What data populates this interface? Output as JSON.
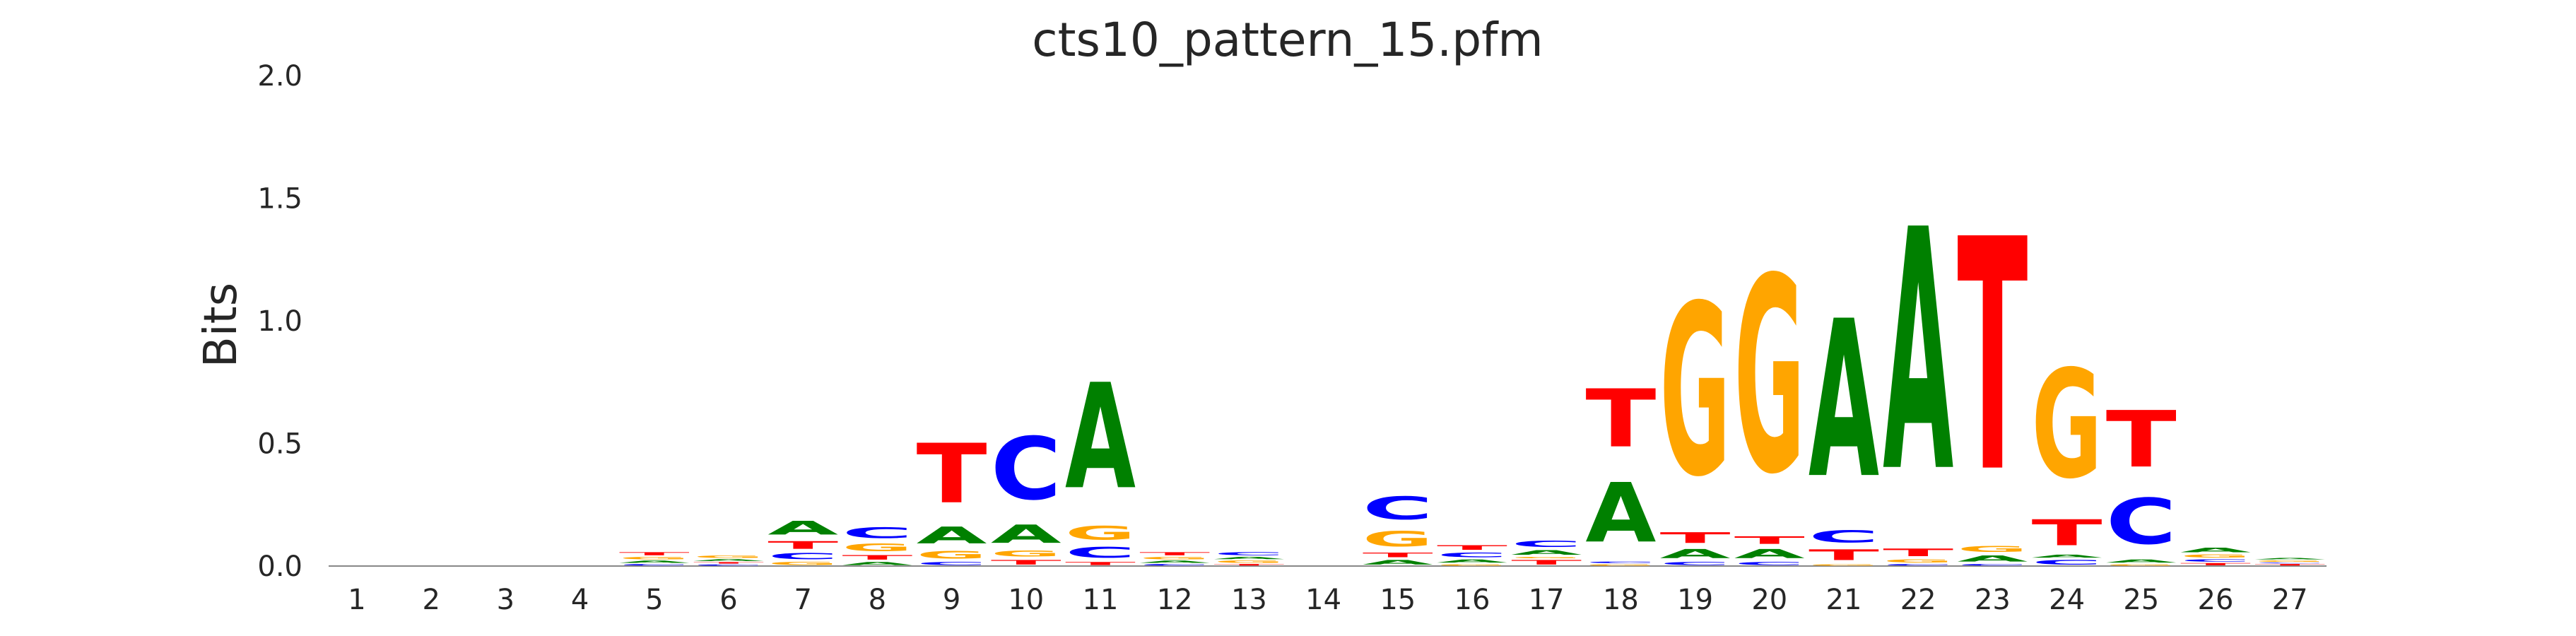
{
  "chart_data": {
    "type": "sequence-logo",
    "title": "cts10_pattern_15.pfm",
    "xlabel": "",
    "ylabel": "Bits",
    "ylim": [
      0,
      2
    ],
    "yticks": [
      "0.0",
      "0.5",
      "1.0",
      "1.5",
      "2.0"
    ],
    "positions": [
      "1",
      "2",
      "3",
      "4",
      "5",
      "6",
      "7",
      "8",
      "9",
      "10",
      "11",
      "12",
      "13",
      "14",
      "15",
      "16",
      "17",
      "18",
      "19",
      "20",
      "21",
      "22",
      "23",
      "24",
      "25",
      "26",
      "27"
    ],
    "colors": {
      "A": "#008000",
      "C": "#0000ff",
      "G": "#ffa500",
      "T": "#ff0000"
    },
    "grid": false,
    "legend": "none",
    "stacks": [
      [],
      [],
      [],
      [],
      [
        [
          "C",
          0.01
        ],
        [
          "A",
          0.015
        ],
        [
          "G",
          0.015
        ],
        [
          "T",
          0.02
        ]
      ],
      [
        [
          "C",
          0.008
        ],
        [
          "T",
          0.01
        ],
        [
          "A",
          0.012
        ],
        [
          "G",
          0.015
        ]
      ],
      [
        [
          "G",
          0.02
        ],
        [
          "C",
          0.04
        ],
        [
          "T",
          0.05
        ],
        [
          "A",
          0.09
        ]
      ],
      [
        [
          "A",
          0.02
        ],
        [
          "T",
          0.03
        ],
        [
          "G",
          0.05
        ],
        [
          "C",
          0.07
        ]
      ],
      [
        [
          "C",
          0.02
        ],
        [
          "G",
          0.05
        ],
        [
          "A",
          0.11
        ],
        [
          "T",
          0.39
        ]
      ],
      [
        [
          "T",
          0.03
        ],
        [
          "G",
          0.04
        ],
        [
          "A",
          0.12
        ],
        [
          "C",
          0.41
        ]
      ],
      [
        [
          "T",
          0.02
        ],
        [
          "C",
          0.07
        ],
        [
          "G",
          0.09
        ],
        [
          "A",
          0.69
        ]
      ],
      [
        [
          "C",
          0.01
        ],
        [
          "A",
          0.015
        ],
        [
          "G",
          0.015
        ],
        [
          "T",
          0.02
        ]
      ],
      [
        [
          "T",
          0.01
        ],
        [
          "G",
          0.015
        ],
        [
          "A",
          0.015
        ],
        [
          "C",
          0.02
        ]
      ],
      [],
      [
        [
          "A",
          0.03
        ],
        [
          "T",
          0.03
        ],
        [
          "G",
          0.1
        ],
        [
          "C",
          0.15
        ]
      ],
      [
        [
          "G",
          0.01
        ],
        [
          "A",
          0.02
        ],
        [
          "C",
          0.03
        ],
        [
          "T",
          0.03
        ]
      ],
      [
        [
          "T",
          0.03
        ],
        [
          "G",
          0.01
        ],
        [
          "A",
          0.03
        ],
        [
          "C",
          0.04
        ]
      ],
      [
        [
          "G",
          0.01
        ],
        [
          "C",
          0.01
        ],
        [
          "A",
          0.39
        ],
        [
          "T",
          0.38
        ]
      ],
      [
        [
          "C",
          0.02
        ],
        [
          "A",
          0.06
        ],
        [
          "T",
          0.07
        ],
        [
          "G",
          1.12
        ]
      ],
      [
        [
          "C",
          0.02
        ],
        [
          "A",
          0.06
        ],
        [
          "T",
          0.05
        ],
        [
          "G",
          1.28
        ]
      ],
      [
        [
          "G",
          0.01
        ],
        [
          "T",
          0.07
        ],
        [
          "C",
          0.08
        ],
        [
          "A",
          1.03
        ]
      ],
      [
        [
          "C",
          0.01
        ],
        [
          "G",
          0.02
        ],
        [
          "T",
          0.05
        ],
        [
          "A",
          1.58
        ]
      ],
      [
        [
          "C",
          0.01
        ],
        [
          "A",
          0.04
        ],
        [
          "G",
          0.04
        ],
        [
          "T",
          1.52
        ]
      ],
      [
        [
          "C",
          0.03
        ],
        [
          "A",
          0.02
        ],
        [
          "T",
          0.17
        ],
        [
          "G",
          0.71
        ]
      ],
      [
        [
          "G",
          0.01
        ],
        [
          "A",
          0.02
        ],
        [
          "C",
          0.3
        ],
        [
          "T",
          0.37
        ]
      ],
      [
        [
          "T",
          0.015
        ],
        [
          "C",
          0.015
        ],
        [
          "G",
          0.02
        ],
        [
          "A",
          0.03
        ]
      ],
      [
        [
          "T",
          0.01
        ],
        [
          "C",
          0.005
        ],
        [
          "G",
          0.01
        ],
        [
          "A",
          0.01
        ]
      ]
    ]
  }
}
